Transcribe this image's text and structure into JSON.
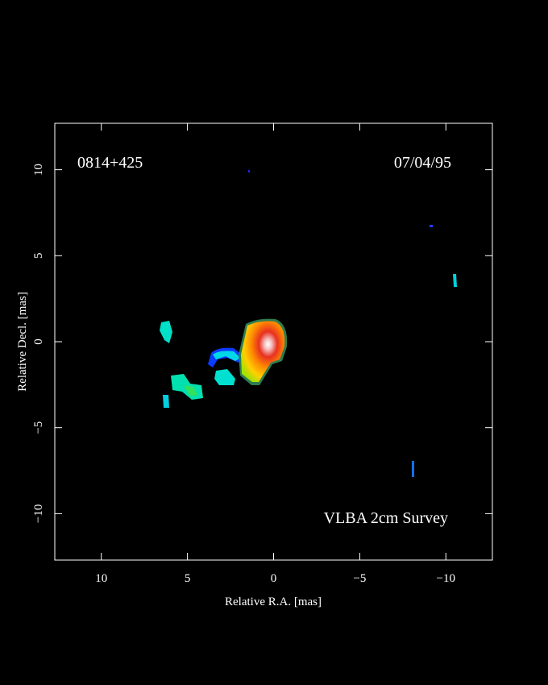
{
  "chart_data": {
    "type": "image",
    "title": "0814+425",
    "date": "07/04/95",
    "annotation": "VLBA 2cm Survey",
    "x_label": "Relative R.A. [mas]",
    "y_label": "Relative Decl. [mas]",
    "xlim": [
      12.7,
      -12.7
    ],
    "ylim": [
      -12.7,
      12.7
    ],
    "xticks": [
      10,
      5,
      0,
      {
        "value": -5,
        "label": "−5"
      },
      {
        "value": -10,
        "label": "−10"
      }
    ],
    "yticks": [
      {
        "value": -10,
        "label": "−10"
      },
      {
        "value": -5,
        "label": "−5"
      },
      0,
      5,
      10
    ],
    "frame_color": "#ffffff"
  }
}
